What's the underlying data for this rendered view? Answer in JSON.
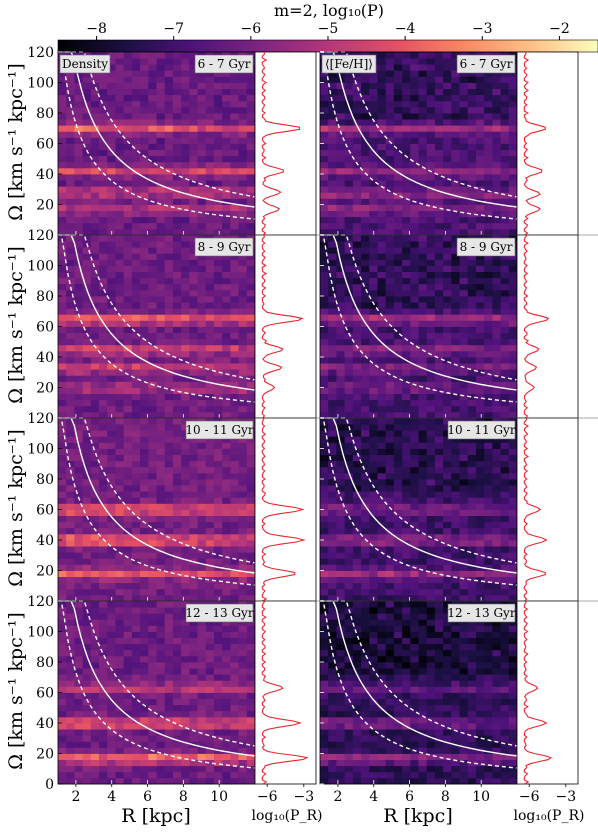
{
  "figure": {
    "colorbar_title": "m=2, log₁₀(P)",
    "colorbar_ticks": [
      "−8",
      "−7",
      "−6",
      "−5",
      "−4",
      "−3",
      "−2"
    ],
    "ylabel": "Ω [km s⁻¹ kpc⁻¹]",
    "xlabel": "R [kpc]",
    "side_xlabel": "log₁₀(P_R)",
    "side_ticks": [
      "−6",
      "−3"
    ],
    "column_labels": [
      "Density",
      "⟨[Fe/H]⟩"
    ],
    "rows": [
      "6 - 7 Gyr",
      "8 - 9 Gyr",
      "10 - 11 Gyr",
      "12 - 13 Gyr"
    ],
    "y_ticks": [
      "0",
      "20",
      "40",
      "60",
      "80",
      "100",
      "120"
    ],
    "x_ticks": [
      "2",
      "4",
      "6",
      "8",
      "10"
    ]
  },
  "chart_data": {
    "type": "heatmap",
    "title": "m=2, log₁₀(P)",
    "xlabel": "R [kpc]",
    "ylabel": "Ω [km s⁻¹ kpc⁻¹]",
    "xlim": [
      1,
      12
    ],
    "ylim": [
      0,
      120
    ],
    "color_range": [
      -8.5,
      -1.5
    ],
    "colormap": "magma",
    "side_xlim": [
      -7,
      -2
    ],
    "panels": [
      {
        "age": "6 - 7 Gyr",
        "column": "Density",
        "bands": [
          [
            70,
            2.7
          ],
          [
            42,
            2.2
          ],
          [
            28,
            2.0
          ],
          [
            17,
            1.6
          ]
        ],
        "base": -6.3
      },
      {
        "age": "6 - 7 Gyr",
        "column": "⟨[Fe/H]⟩",
        "bands": [
          [
            70,
            1.7
          ],
          [
            42,
            1.5
          ],
          [
            27,
            1.4
          ],
          [
            17,
            1.4
          ]
        ],
        "base": -6.8
      },
      {
        "age": "8 - 9 Gyr",
        "column": "Density",
        "bands": [
          [
            65,
            2.9
          ],
          [
            45,
            2.1
          ],
          [
            33,
            2.0
          ],
          [
            20,
            1.4
          ]
        ],
        "base": -6.2
      },
      {
        "age": "8 - 9 Gyr",
        "column": "⟨[Fe/H]⟩",
        "bands": [
          [
            65,
            2.0
          ],
          [
            45,
            1.4
          ],
          [
            33,
            1.2
          ],
          [
            20,
            1.0
          ]
        ],
        "base": -6.9
      },
      {
        "age": "10 - 11 Gyr",
        "column": "Density",
        "bands": [
          [
            60,
            2.9
          ],
          [
            40,
            3.0
          ],
          [
            18,
            2.4
          ]
        ],
        "base": -6.1
      },
      {
        "age": "10 - 11 Gyr",
        "column": "⟨[Fe/H]⟩",
        "bands": [
          [
            60,
            1.4
          ],
          [
            40,
            1.8
          ],
          [
            18,
            1.8
          ]
        ],
        "base": -7.0
      },
      {
        "age": "12 - 13 Gyr",
        "column": "Density",
        "bands": [
          [
            63,
            1.7
          ],
          [
            40,
            2.8
          ],
          [
            17,
            3.3
          ]
        ],
        "base": -6.2
      },
      {
        "age": "12 - 13 Gyr",
        "column": "⟨[Fe/H]⟩",
        "bands": [
          [
            63,
            1.2
          ],
          [
            40,
            1.8
          ],
          [
            17,
            2.2
          ]
        ],
        "base": -7.3
      }
    ],
    "curves": {
      "solid": "Omega = 220 / R",
      "dashed_upper": "Omega = 300 / R",
      "dashed_lower": "Omega = 150 / R - 2"
    },
    "side_profiles": [
      {
        "age": "6 - 7 Gyr",
        "column": "Density",
        "peaks": [
          [
            70,
            -3.2
          ],
          [
            42,
            -4.6
          ],
          [
            28,
            -4.9
          ],
          [
            17,
            -5.0
          ]
        ]
      },
      {
        "age": "6 - 7 Gyr",
        "column": "⟨[Fe/H]⟩",
        "peaks": [
          [
            70,
            -4.6
          ],
          [
            42,
            -4.9
          ],
          [
            27,
            -5.1
          ],
          [
            17,
            -5.1
          ]
        ]
      },
      {
        "age": "8 - 9 Gyr",
        "column": "Density",
        "peaks": [
          [
            65,
            -3.1
          ],
          [
            45,
            -4.7
          ],
          [
            33,
            -4.8
          ],
          [
            20,
            -5.4
          ]
        ]
      },
      {
        "age": "8 - 9 Gyr",
        "column": "⟨[Fe/H]⟩",
        "peaks": [
          [
            65,
            -4.4
          ],
          [
            45,
            -5.2
          ],
          [
            33,
            -5.4
          ],
          [
            20,
            -5.6
          ]
        ]
      },
      {
        "age": "10 - 11 Gyr",
        "column": "Density",
        "peaks": [
          [
            60,
            -3.1
          ],
          [
            40,
            -3.0
          ],
          [
            18,
            -3.6
          ]
        ]
      },
      {
        "age": "10 - 11 Gyr",
        "column": "⟨[Fe/H]⟩",
        "peaks": [
          [
            60,
            -5.1
          ],
          [
            40,
            -4.6
          ],
          [
            18,
            -4.6
          ]
        ]
      },
      {
        "age": "12 - 13 Gyr",
        "column": "Density",
        "peaks": [
          [
            63,
            -4.7
          ],
          [
            40,
            -3.3
          ],
          [
            17,
            -2.7
          ]
        ]
      },
      {
        "age": "12 - 13 Gyr",
        "column": "⟨[Fe/H]⟩",
        "peaks": [
          [
            63,
            -5.3
          ],
          [
            40,
            -4.6
          ],
          [
            17,
            -4.2
          ]
        ]
      }
    ]
  }
}
